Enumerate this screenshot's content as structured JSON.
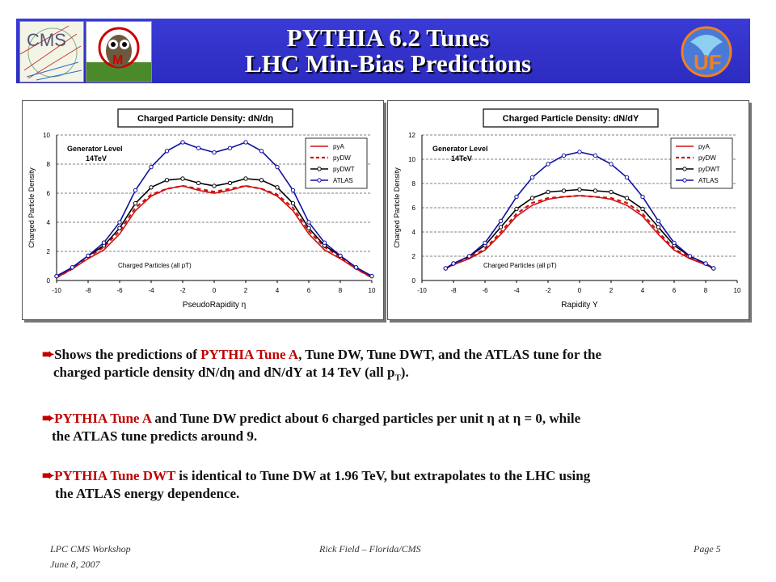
{
  "header": {
    "title_line1": "PYTHIA 6.2 Tunes",
    "title_line2": "LHC Min-Bias Predictions",
    "logo_cms_text": "CMS",
    "logo_uf_text": "UF"
  },
  "colors": {
    "banner": "#2f2fc8",
    "pyA": "#d01010",
    "pyDW": "#d01010",
    "pyDWT": "#000000",
    "ATLAS": "#1010a0",
    "accent": "#c00000"
  },
  "chart_data": [
    {
      "type": "line",
      "title": "Charged Particle Density: dN/dη",
      "xlabel": "PseudoRapidity η",
      "ylabel": "Charged Particle Density",
      "xlim": [
        -10,
        10
      ],
      "ylim": [
        0,
        10
      ],
      "xticks": [
        -10,
        -8,
        -6,
        -4,
        -2,
        0,
        2,
        4,
        6,
        8,
        10
      ],
      "yticks": [
        0,
        2,
        4,
        6,
        8,
        10
      ],
      "annotations": [
        "Generator Level",
        "14TeV",
        "Charged Particles (all pT)"
      ],
      "legend_position": "top-right",
      "series": [
        {
          "name": "pyA",
          "style": "solid",
          "x": [
            -10,
            -9,
            -8,
            -7,
            -6,
            -5,
            -4,
            -3,
            -2,
            -1,
            0,
            1,
            2,
            3,
            4,
            5,
            6,
            7,
            8,
            9,
            10
          ],
          "y": [
            0.2,
            0.8,
            1.5,
            2.1,
            3.2,
            4.8,
            5.8,
            6.3,
            6.5,
            6.2,
            6.0,
            6.2,
            6.5,
            6.3,
            5.8,
            4.8,
            3.2,
            2.1,
            1.5,
            0.8,
            0.2
          ]
        },
        {
          "name": "pyDW",
          "style": "dashed",
          "x": [
            -10,
            -9,
            -8,
            -7,
            -6,
            -5,
            -4,
            -3,
            -2,
            -1,
            0,
            1,
            2,
            3,
            4,
            5,
            6,
            7,
            8,
            9,
            10
          ],
          "y": [
            0.2,
            0.8,
            1.6,
            2.3,
            3.4,
            5.0,
            5.9,
            6.3,
            6.5,
            6.3,
            6.1,
            6.3,
            6.5,
            6.3,
            5.9,
            5.0,
            3.4,
            2.3,
            1.6,
            0.8,
            0.2
          ]
        },
        {
          "name": "pyDWT",
          "style": "solid-marker",
          "x": [
            -10,
            -9,
            -8,
            -7,
            -6,
            -5,
            -4,
            -3,
            -2,
            -1,
            0,
            1,
            2,
            3,
            4,
            5,
            6,
            7,
            8,
            9,
            10
          ],
          "y": [
            0.3,
            0.9,
            1.7,
            2.4,
            3.6,
            5.3,
            6.4,
            6.9,
            7.0,
            6.7,
            6.5,
            6.7,
            7.0,
            6.9,
            6.4,
            5.3,
            3.6,
            2.4,
            1.7,
            0.9,
            0.3
          ]
        },
        {
          "name": "ATLAS",
          "style": "solid-marker",
          "x": [
            -10,
            -9,
            -8,
            -7,
            -6,
            -5,
            -4,
            -3,
            -2,
            -1,
            0,
            1,
            2,
            3,
            4,
            5,
            6,
            7,
            8,
            9,
            10
          ],
          "y": [
            0.3,
            0.9,
            1.7,
            2.6,
            4.0,
            6.2,
            7.8,
            8.9,
            9.5,
            9.1,
            8.8,
            9.1,
            9.5,
            8.9,
            7.8,
            6.2,
            4.0,
            2.6,
            1.7,
            0.9,
            0.3
          ]
        }
      ]
    },
    {
      "type": "line",
      "title": "Charged Particle Density: dN/dY",
      "xlabel": "Rapidity Y",
      "ylabel": "Charged Particle Density",
      "xlim": [
        -10,
        10
      ],
      "ylim": [
        0,
        12
      ],
      "xticks": [
        -10,
        -8,
        -6,
        -4,
        -2,
        0,
        2,
        4,
        6,
        8,
        10
      ],
      "yticks": [
        0,
        2,
        4,
        6,
        8,
        10,
        12
      ],
      "annotations": [
        "Generator Level",
        "14TeV",
        "Charged Particles (all pT)"
      ],
      "legend_position": "top-right",
      "series": [
        {
          "name": "pyA",
          "style": "solid",
          "x": [
            -8.5,
            -8,
            -7,
            -6,
            -5,
            -4,
            -3,
            -2,
            -1,
            0,
            1,
            2,
            3,
            4,
            5,
            6,
            7,
            8,
            8.5
          ],
          "y": [
            1.0,
            1.3,
            1.8,
            2.5,
            3.8,
            5.3,
            6.2,
            6.7,
            6.9,
            7.0,
            6.9,
            6.7,
            6.2,
            5.3,
            3.8,
            2.5,
            1.8,
            1.3,
            1.0
          ]
        },
        {
          "name": "pyDW",
          "style": "dashed",
          "x": [
            -8.5,
            -8,
            -7,
            -6,
            -5,
            -4,
            -3,
            -2,
            -1,
            0,
            1,
            2,
            3,
            4,
            5,
            6,
            7,
            8,
            8.5
          ],
          "y": [
            1.0,
            1.3,
            1.9,
            2.6,
            4.0,
            5.5,
            6.4,
            6.8,
            6.9,
            7.0,
            6.9,
            6.8,
            6.4,
            5.5,
            4.0,
            2.6,
            1.9,
            1.3,
            1.0
          ]
        },
        {
          "name": "pyDWT",
          "style": "solid-marker",
          "x": [
            -8.5,
            -8,
            -7,
            -6,
            -5,
            -4,
            -3,
            -2,
            -1,
            0,
            1,
            2,
            3,
            4,
            5,
            6,
            7,
            8,
            8.5
          ],
          "y": [
            1.0,
            1.4,
            2.0,
            2.9,
            4.4,
            5.9,
            6.8,
            7.3,
            7.4,
            7.5,
            7.4,
            7.3,
            6.8,
            5.9,
            4.4,
            2.9,
            2.0,
            1.4,
            1.0
          ]
        },
        {
          "name": "ATLAS",
          "style": "solid-marker",
          "x": [
            -8.5,
            -8,
            -7,
            -6,
            -5,
            -4,
            -3,
            -2,
            -1,
            0,
            1,
            2,
            3,
            4,
            5,
            6,
            7,
            8,
            8.5
          ],
          "y": [
            1.0,
            1.4,
            2.0,
            3.1,
            4.9,
            6.9,
            8.5,
            9.6,
            10.3,
            10.6,
            10.3,
            9.6,
            8.5,
            6.9,
            4.9,
            3.1,
            2.0,
            1.4,
            1.0
          ]
        }
      ]
    }
  ],
  "bullets": [
    {
      "parts": [
        {
          "t": "Shows the predictions of ",
          "hl": false
        },
        {
          "t": "PYTHIA Tune A",
          "hl": true
        },
        {
          "t": ", Tune DW, Tune DWT, and the ATLAS tune for the",
          "hl": false
        }
      ],
      "line2": "charged particle density dN/dη and dN/dY at 14 TeV (all pT)."
    },
    {
      "parts": [
        {
          "t": "PYTHIA Tune A",
          "hl": true
        },
        {
          "t": " and Tune DW predict about 6 charged particles per unit η at η = 0, while",
          "hl": false
        }
      ],
      "line2": "the ATLAS tune predicts around 9."
    },
    {
      "parts": [
        {
          "t": "PYTHIA Tune DWT",
          "hl": true
        },
        {
          "t": " is identical to Tune DW at 1.96 TeV, but extrapolates to the LHC using",
          "hl": false
        }
      ],
      "line2": "the ATLAS energy dependence."
    }
  ],
  "footer": {
    "left_line1": "LPC CMS Workshop",
    "left_line2": "June 8, 2007",
    "center": "Rick Field – Florida/CMS",
    "right": "Page 5"
  }
}
